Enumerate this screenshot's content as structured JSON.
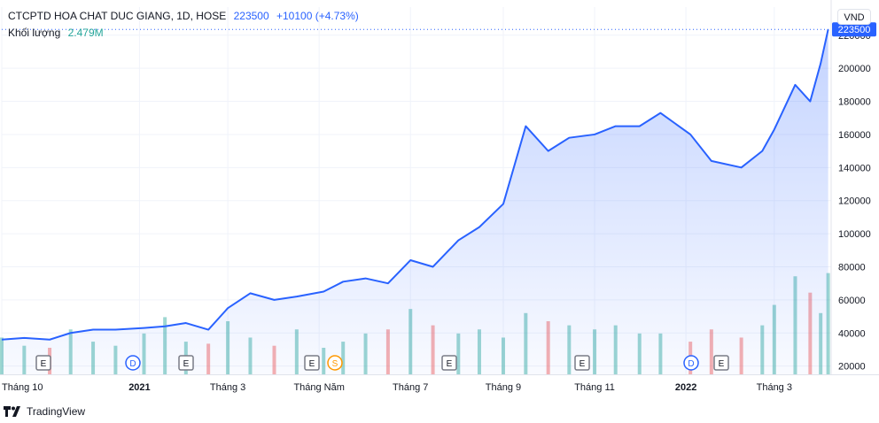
{
  "legend": {
    "title": "CTCPTD HOA CHAT DUC GIANG, 1D, HOSE",
    "last_price": "223500",
    "change": "+10100 (+4.73%)",
    "volume_label": "Khối lượng",
    "volume_value": "2.479M"
  },
  "currency_button": "VND",
  "last_price_tag": "223500",
  "brand": "TradingView",
  "colors": {
    "line": "#2962ff",
    "vol_up": "#26a69a",
    "vol_down": "#ef5350",
    "tag": "#2962ff"
  },
  "markers": [
    {
      "label": "E",
      "type": "earnings",
      "x": "Tháng 11 2020"
    },
    {
      "label": "D",
      "type": "dividend",
      "x": "Tháng 1 2021"
    },
    {
      "label": "E",
      "type": "earnings",
      "x": "Tháng 2 2021"
    },
    {
      "label": "E",
      "type": "earnings",
      "x": "Tháng 5 2021"
    },
    {
      "label": "S",
      "type": "split",
      "x": "Tháng 5 2021"
    },
    {
      "label": "E",
      "type": "earnings",
      "x": "Tháng 7 2021"
    },
    {
      "label": "E",
      "type": "earnings",
      "x": "Tháng 10 2021"
    },
    {
      "label": "D",
      "type": "dividend",
      "x": "Tháng 1 2022"
    },
    {
      "label": "E",
      "type": "earnings",
      "x": "Tháng 1 2022"
    }
  ],
  "chart_data": {
    "type": "area",
    "title": "CTCPTD HOA CHAT DUC GIANG, 1D, HOSE",
    "x_tick_labels": [
      "Tháng 10",
      "2021",
      "Tháng 3",
      "Tháng Năm",
      "Tháng 7",
      "Tháng 9",
      "Tháng 11",
      "2022",
      "Tháng 3"
    ],
    "x_tick_positions": [
      "2020-10-01",
      "2021-01-01",
      "2021-03-01",
      "2021-05-01",
      "2021-07-01",
      "2021-09-01",
      "2021-11-01",
      "2022-01-01",
      "2022-03-01"
    ],
    "y_ticks": [
      20000,
      40000,
      60000,
      80000,
      100000,
      120000,
      140000,
      160000,
      180000,
      200000,
      220000
    ],
    "ylim": [
      15000,
      237000
    ],
    "xlim": [
      "2020-10-01",
      "2022-04-08"
    ],
    "x": [
      "2020-10-01",
      "2020-10-16",
      "2020-11-02",
      "2020-11-16",
      "2020-12-01",
      "2020-12-16",
      "2021-01-04",
      "2021-01-18",
      "2021-02-01",
      "2021-02-16",
      "2021-03-01",
      "2021-03-16",
      "2021-04-01",
      "2021-04-16",
      "2021-05-04",
      "2021-05-17",
      "2021-06-01",
      "2021-06-16",
      "2021-07-01",
      "2021-07-16",
      "2021-08-02",
      "2021-08-16",
      "2021-09-01",
      "2021-09-16",
      "2021-10-01",
      "2021-10-15",
      "2021-11-01",
      "2021-11-15",
      "2021-12-01",
      "2021-12-15",
      "2022-01-04",
      "2022-01-18",
      "2022-02-07",
      "2022-02-21",
      "2022-03-01",
      "2022-03-15",
      "2022-03-25",
      "2022-04-01",
      "2022-04-06"
    ],
    "series": [
      {
        "type": "area",
        "values": [
          36000,
          37000,
          36000,
          40000,
          42000,
          42000,
          43000,
          44000,
          46000,
          42000,
          55000,
          64000,
          60000,
          62000,
          65000,
          71000,
          73000,
          70000,
          84000,
          80000,
          96000,
          104000,
          118000,
          165000,
          150000,
          158000,
          160000,
          165000,
          165000,
          173000,
          160000,
          144000,
          140000,
          150000,
          163000,
          190000,
          180000,
          203000,
          223500
        ]
      },
      {
        "type": "volume",
        "values": [
          900000,
          700000,
          650000,
          1100000,
          800000,
          700000,
          1000000,
          1400000,
          800000,
          750000,
          1300000,
          900000,
          700000,
          1100000,
          650000,
          800000,
          1000000,
          1100000,
          1600000,
          1200000,
          1000000,
          1100000,
          900000,
          1500000,
          1300000,
          1200000,
          1100000,
          1200000,
          1000000,
          1000000,
          800000,
          1100000,
          900000,
          1200000,
          1700000,
          2400000,
          2000000,
          1500000,
          2479000
        ]
      }
    ],
    "grid": true,
    "last_value_line": 223500
  }
}
